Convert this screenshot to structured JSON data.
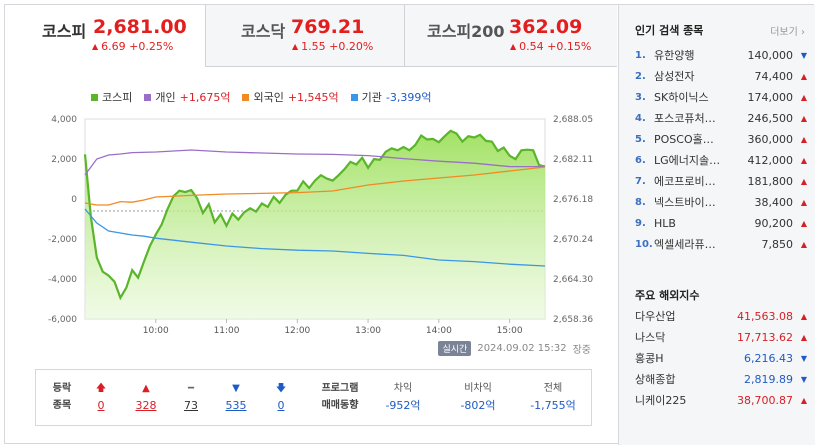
{
  "tabs": [
    {
      "name": "코스피",
      "value": "2,681.00",
      "change": "6.69 +0.25%",
      "active": true
    },
    {
      "name": "코스닥",
      "value": "769.21",
      "change": "1.55 +0.20%",
      "active": false
    },
    {
      "name": "코스피200",
      "value": "362.09",
      "change": "0.54 +0.15%",
      "active": false
    }
  ],
  "legend": {
    "kospi": "코스피",
    "individual_label": "개인",
    "individual_value": "+1,675억",
    "foreign_label": "외국인",
    "foreign_value": "+1,545억",
    "institution_label": "기관",
    "institution_value": "-3,399억"
  },
  "colors": {
    "kospi": "#5ab52a",
    "individual": "#9a6fc7",
    "foreign": "#f08a24",
    "institution": "#3b97e3",
    "up": "#d81f26",
    "down": "#1f5bc4"
  },
  "chart_data": {
    "type": "line",
    "x_ticks": [
      "10:00",
      "11:00",
      "12:00",
      "13:00",
      "14:00",
      "15:00"
    ],
    "y_left_ticks": [
      "4,000",
      "2,000",
      "0",
      "-2,000",
      "-4,000",
      "-6,000"
    ],
    "y_left_range": [
      -6000,
      4000
    ],
    "y_right_ticks": [
      "2,688.05",
      "2,682.11",
      "2,676.18",
      "2,670.24",
      "2,664.30",
      "2,658.36"
    ],
    "y_right_range": [
      2658.36,
      2688.05
    ],
    "series": [
      {
        "name": "코스피",
        "axis": "right",
        "x": [
          "09:00",
          "09:05",
          "09:10",
          "09:15",
          "09:20",
          "09:25",
          "09:30",
          "09:35",
          "09:40",
          "09:45",
          "09:50",
          "09:55",
          "10:00",
          "10:05",
          "10:10",
          "10:15",
          "10:20",
          "10:25",
          "10:30",
          "10:35",
          "10:40",
          "10:45",
          "10:50",
          "10:55",
          "11:00",
          "11:05",
          "11:10",
          "11:15",
          "11:20",
          "11:25",
          "11:30",
          "11:35",
          "11:40",
          "11:45",
          "11:50",
          "11:55",
          "12:00",
          "12:05",
          "12:10",
          "12:15",
          "12:20",
          "12:25",
          "12:30",
          "12:35",
          "12:40",
          "12:45",
          "12:50",
          "12:55",
          "13:00",
          "13:05",
          "13:10",
          "13:15",
          "13:20",
          "13:25",
          "13:30",
          "13:35",
          "13:40",
          "13:45",
          "13:50",
          "13:55",
          "14:00",
          "14:05",
          "14:10",
          "14:15",
          "14:20",
          "14:25",
          "14:30",
          "14:35",
          "14:40",
          "14:45",
          "14:50",
          "14:55",
          "15:00",
          "15:05",
          "15:10",
          "15:15",
          "15:20",
          "15:25",
          "15:30"
        ],
        "values": [
          2682.8,
          2673.5,
          2667.5,
          2665.4,
          2664.8,
          2663.9,
          2661.5,
          2663.0,
          2665.6,
          2664.5,
          2666.9,
          2669.2,
          2670.9,
          2672.4,
          2674.7,
          2676.6,
          2677.4,
          2677.2,
          2677.5,
          2676.3,
          2674.1,
          2675.4,
          2672.7,
          2673.9,
          2672.2,
          2674.0,
          2673.1,
          2674.2,
          2674.8,
          2674.3,
          2675.5,
          2675.0,
          2676.5,
          2675.6,
          2676.8,
          2677.4,
          2677.4,
          2678.8,
          2677.8,
          2678.9,
          2679.7,
          2679.2,
          2678.9,
          2679.7,
          2680.6,
          2681.7,
          2681.3,
          2682.3,
          2680.8,
          2682.1,
          2682.0,
          2683.2,
          2683.7,
          2683.4,
          2683.9,
          2683.4,
          2684.2,
          2685.6,
          2685.0,
          2685.1,
          2684.6,
          2685.5,
          2686.3,
          2685.9,
          2684.7,
          2685.5,
          2685.3,
          2685.7,
          2684.8,
          2684.7,
          2683.3,
          2683.8,
          2682.6,
          2682.1,
          2683.4,
          2683.5,
          2683.4,
          2681.2,
          2681.0
        ]
      },
      {
        "name": "개인",
        "axis": "left",
        "x": [
          "09:00",
          "09:10",
          "09:20",
          "09:30",
          "09:40",
          "10:00",
          "10:30",
          "11:00",
          "11:30",
          "12:00",
          "12:30",
          "13:00",
          "13:30",
          "14:00",
          "14:30",
          "15:00",
          "15:30"
        ],
        "values": [
          1200,
          2000,
          2200,
          2250,
          2320,
          2350,
          2450,
          2350,
          2300,
          2250,
          2230,
          2170,
          2020,
          1890,
          1790,
          1620,
          1620
        ]
      },
      {
        "name": "외국인",
        "axis": "left",
        "x": [
          "09:00",
          "09:10",
          "09:20",
          "09:30",
          "09:40",
          "09:50",
          "10:00",
          "10:30",
          "11:00",
          "11:30",
          "12:00",
          "12:30",
          "13:00",
          "13:30",
          "14:00",
          "14:30",
          "15:00",
          "15:30"
        ],
        "values": [
          -200,
          -300,
          -300,
          -130,
          -160,
          -50,
          100,
          180,
          250,
          280,
          320,
          400,
          700,
          900,
          1050,
          1200,
          1400,
          1600
        ]
      },
      {
        "name": "기관",
        "axis": "left",
        "x": [
          "09:00",
          "09:10",
          "09:20",
          "09:30",
          "09:40",
          "09:50",
          "10:00",
          "10:30",
          "11:00",
          "11:30",
          "12:00",
          "12:30",
          "13:00",
          "13:30",
          "14:00",
          "14:30",
          "15:00",
          "15:30"
        ],
        "values": [
          -500,
          -1200,
          -1600,
          -1700,
          -1800,
          -1860,
          -1960,
          -2160,
          -2350,
          -2480,
          -2560,
          -2600,
          -2720,
          -2820,
          -3050,
          -3130,
          -3260,
          -3350
        ]
      }
    ]
  },
  "footer": {
    "realtime": "실시간",
    "timestamp": "2024.09.02 15:32",
    "status": "장중"
  },
  "stats": {
    "label_line1": "등락",
    "label_line2": "종목",
    "items": [
      {
        "icon": "🡅",
        "value": "0",
        "kind": "up"
      },
      {
        "icon": "▲",
        "value": "328",
        "kind": "up"
      },
      {
        "icon": "━",
        "value": "73",
        "kind": "flat"
      },
      {
        "icon": "▼",
        "value": "535",
        "kind": "down"
      },
      {
        "icon": "🡇",
        "value": "0",
        "kind": "down"
      }
    ],
    "program_line1": "프로그램",
    "program_line2": "매매동향",
    "program": [
      {
        "head": "차익",
        "value": "-952억"
      },
      {
        "head": "비차익",
        "value": "-802억"
      },
      {
        "head": "전체",
        "value": "-1,755억"
      }
    ]
  },
  "sidebar": {
    "popular_title": "인기 검색 종목",
    "more": "더보기",
    "popular": [
      {
        "rank": "1.",
        "name": "유한양행",
        "price": "140,000",
        "dir": "down"
      },
      {
        "rank": "2.",
        "name": "삼성전자",
        "price": "74,400",
        "dir": "up"
      },
      {
        "rank": "3.",
        "name": "SK하이닉스",
        "price": "174,000",
        "dir": "up"
      },
      {
        "rank": "4.",
        "name": "포스코퓨처…",
        "price": "246,500",
        "dir": "up"
      },
      {
        "rank": "5.",
        "name": "POSCO홀…",
        "price": "360,000",
        "dir": "up"
      },
      {
        "rank": "6.",
        "name": "LG에너지솔…",
        "price": "412,000",
        "dir": "up"
      },
      {
        "rank": "7.",
        "name": "에코프로비…",
        "price": "181,800",
        "dir": "up"
      },
      {
        "rank": "8.",
        "name": "넥스트바이…",
        "price": "38,400",
        "dir": "up"
      },
      {
        "rank": "9.",
        "name": "HLB",
        "price": "90,200",
        "dir": "up"
      },
      {
        "rank": "10.",
        "name": "엑셀세라퓨…",
        "price": "7,850",
        "dir": "up"
      }
    ],
    "index_title": "주요 해외지수",
    "indices": [
      {
        "name": "다우산업",
        "value": "41,563.08",
        "dir": "up"
      },
      {
        "name": "나스닥",
        "value": "17,713.62",
        "dir": "up"
      },
      {
        "name": "홍콩H",
        "value": "6,216.43",
        "dir": "down"
      },
      {
        "name": "상해종합",
        "value": "2,819.89",
        "dir": "down"
      },
      {
        "name": "니케이225",
        "value": "38,700.87",
        "dir": "up"
      }
    ]
  }
}
